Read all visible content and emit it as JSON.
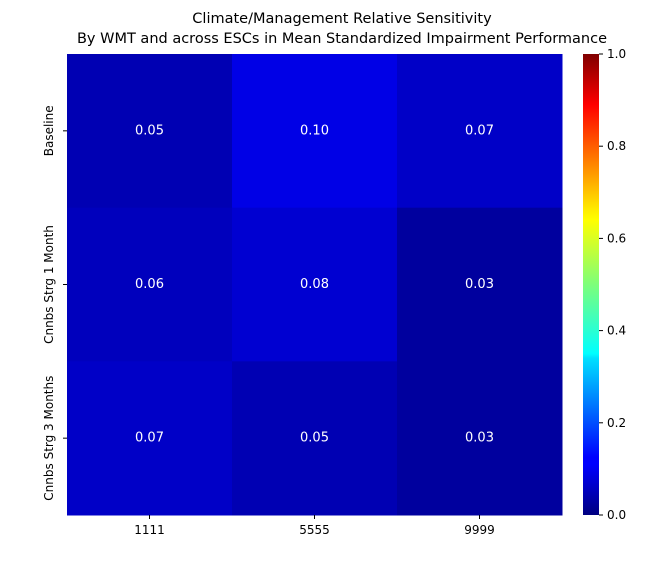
{
  "chart_data": {
    "type": "heatmap",
    "title": "Climate/Management Relative Sensitivity",
    "subtitle": "By WMT and across ESCs in Mean Standardized Impairment Performance",
    "xlabel": "",
    "ylabel": "",
    "x_categories": [
      "1111",
      "5555",
      "9999"
    ],
    "y_categories": [
      "Baseline",
      "Cnnbs Strg 1 Month",
      "Cnnbs Strg 3 Months"
    ],
    "values": [
      [
        0.05,
        0.1,
        0.07
      ],
      [
        0.06,
        0.08,
        0.03
      ],
      [
        0.07,
        0.05,
        0.03
      ]
    ],
    "value_labels": [
      [
        "0.05",
        "0.10",
        "0.07"
      ],
      [
        "0.06",
        "0.08",
        "0.03"
      ],
      [
        "0.07",
        "0.05",
        "0.03"
      ]
    ],
    "colormap": "jet",
    "colorbar": {
      "vmin": 0.0,
      "vmax": 1.0,
      "ticks": [
        0.0,
        0.2,
        0.4,
        0.6,
        0.8,
        1.0
      ],
      "tick_labels": [
        "0.0",
        "0.2",
        "0.4",
        "0.6",
        "0.8",
        "1.0"
      ]
    },
    "grid": false,
    "legend": "colorbar-right"
  }
}
